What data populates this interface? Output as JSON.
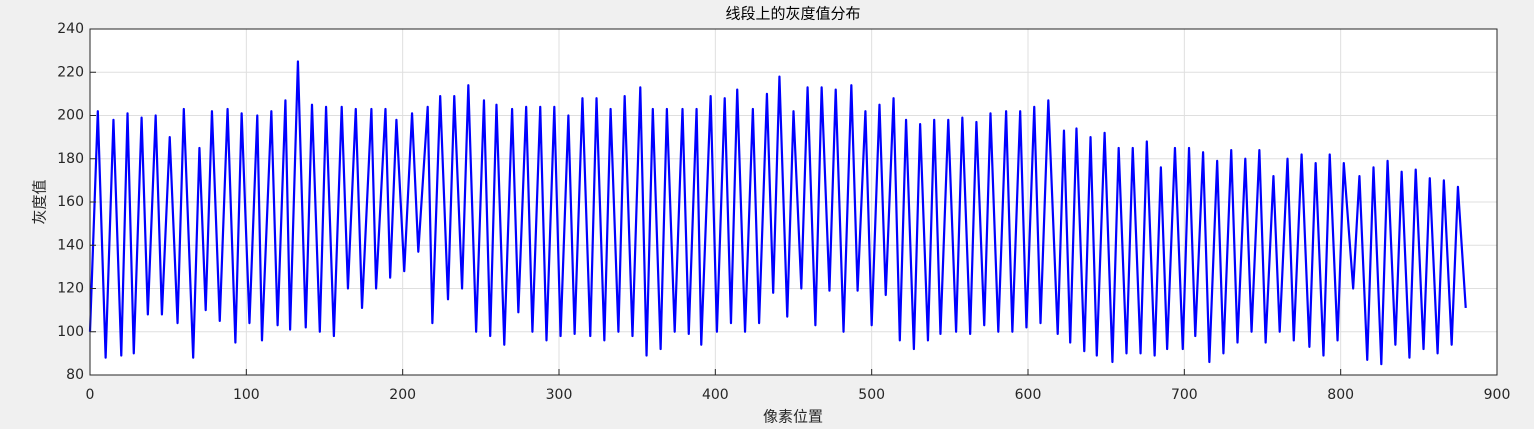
{
  "chart_data": {
    "type": "line",
    "title": "线段上的灰度值分布",
    "x_label": "像素位置",
    "y_label": "灰度值",
    "color": "#0000ff",
    "grid": true,
    "xlim": [
      0,
      900
    ],
    "xticks": [
      0,
      100,
      200,
      300,
      400,
      500,
      600,
      700,
      800,
      900
    ],
    "ylim": [
      80,
      240
    ],
    "yticks": [
      80,
      100,
      120,
      140,
      160,
      180,
      200,
      220,
      240
    ],
    "x": [
      0,
      5,
      10,
      15,
      20,
      24,
      28,
      33,
      37,
      42,
      46,
      51,
      56,
      60,
      66,
      70,
      74,
      78,
      83,
      88,
      93,
      97,
      102,
      107,
      110,
      116,
      120,
      125,
      128,
      133,
      138,
      142,
      147,
      151,
      156,
      161,
      165,
      170,
      174,
      180,
      183,
      189,
      192,
      196,
      201,
      206,
      210,
      216,
      219,
      224,
      229,
      233,
      238,
      242,
      247,
      252,
      256,
      260,
      265,
      270,
      274,
      279,
      283,
      288,
      292,
      297,
      301,
      306,
      310,
      315,
      320,
      324,
      329,
      333,
      338,
      342,
      347,
      352,
      356,
      360,
      365,
      369,
      374,
      379,
      383,
      388,
      391,
      397,
      401,
      406,
      410,
      414,
      419,
      424,
      428,
      433,
      437,
      441,
      446,
      450,
      455,
      459,
      464,
      468,
      473,
      477,
      482,
      487,
      491,
      496,
      500,
      505,
      509,
      514,
      518,
      522,
      527,
      531,
      536,
      540,
      544,
      549,
      554,
      558,
      563,
      567,
      572,
      576,
      581,
      586,
      590,
      595,
      599,
      604,
      608,
      613,
      619,
      623,
      627,
      631,
      636,
      640,
      644,
      649,
      654,
      658,
      663,
      667,
      672,
      676,
      681,
      685,
      689,
      694,
      699,
      703,
      707,
      712,
      716,
      721,
      725,
      730,
      734,
      739,
      743,
      748,
      752,
      757,
      761,
      766,
      770,
      775,
      780,
      784,
      789,
      793,
      798,
      802,
      808,
      812,
      817,
      821,
      826,
      830,
      835,
      839,
      844,
      848,
      853,
      857,
      862,
      866,
      871,
      875,
      880
    ],
    "values": [
      100,
      202,
      88,
      198,
      89,
      201,
      90,
      199,
      108,
      200,
      108,
      190,
      104,
      203,
      88,
      185,
      110,
      202,
      105,
      203,
      95,
      201,
      104,
      200,
      96,
      202,
      103,
      207,
      101,
      225,
      102,
      205,
      100,
      204,
      98,
      204,
      120,
      203,
      111,
      203,
      120,
      203,
      125,
      198,
      128,
      201,
      137,
      204,
      104,
      209,
      115,
      209,
      120,
      214,
      100,
      207,
      98,
      205,
      94,
      203,
      109,
      204,
      100,
      204,
      96,
      204,
      98,
      200,
      99,
      208,
      98,
      208,
      96,
      203,
      100,
      209,
      98,
      213,
      89,
      203,
      92,
      203,
      100,
      203,
      99,
      203,
      94,
      209,
      100,
      208,
      104,
      212,
      100,
      203,
      104,
      210,
      118,
      218,
      107,
      202,
      120,
      213,
      103,
      213,
      119,
      212,
      100,
      214,
      119,
      202,
      103,
      205,
      117,
      208,
      96,
      198,
      92,
      196,
      96,
      198,
      99,
      198,
      100,
      199,
      99,
      197,
      103,
      201,
      100,
      202,
      100,
      202,
      102,
      204,
      104,
      207,
      99,
      193,
      95,
      194,
      91,
      190,
      89,
      192,
      86,
      185,
      90,
      185,
      90,
      188,
      89,
      176,
      92,
      185,
      92,
      185,
      98,
      183,
      86,
      179,
      90,
      184,
      95,
      180,
      100,
      184,
      95,
      172,
      100,
      180,
      96,
      182,
      93,
      178,
      89,
      182,
      96,
      178,
      120,
      172,
      87,
      176,
      85,
      179,
      94,
      174,
      88,
      175,
      92,
      171,
      90,
      170,
      94,
      167,
      111
    ]
  }
}
